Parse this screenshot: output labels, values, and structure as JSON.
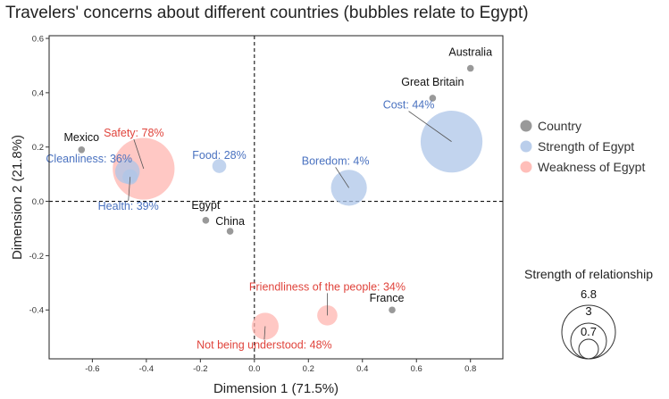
{
  "colors": {
    "country": "#999999",
    "strength": "#AEC6E8",
    "weakness": "#FFB3AD",
    "strength_text": "#4A72C0",
    "weakness_text": "#E0443C",
    "country_text": "#111111"
  },
  "chart_data": {
    "type": "scatter",
    "title": "Travelers' concerns about different countries (bubbles relate to Egypt)",
    "xlabel": "Dimension 1 (71.5%)",
    "ylabel": "Dimension 2 (21.8%)",
    "xlim": [
      -0.76,
      0.92
    ],
    "ylim": [
      -0.58,
      0.61
    ],
    "x_ticks": [
      "-0.6",
      "-0.4",
      "-0.2",
      "0.0",
      "0.2",
      "0.4",
      "0.6",
      "0.8"
    ],
    "y_ticks": [
      "-0.4",
      "-0.2",
      "0.0",
      "0.2",
      "0.4",
      "0.6"
    ],
    "grid": false,
    "reference_lines": "dashed lines at x = 0 and y = 0",
    "legend": {
      "placement": "right",
      "items": [
        "Country",
        "Strength of Egypt",
        "Weakness of Egypt"
      ]
    },
    "size_legend": {
      "title": "Strength of relationship",
      "values": [
        "6.8",
        "3",
        "0.7"
      ]
    },
    "series": [
      {
        "name": "Country",
        "points": [
          {
            "label": "Australia",
            "x": 0.8,
            "y": 0.49
          },
          {
            "label": "Great Britain",
            "x": 0.66,
            "y": 0.38
          },
          {
            "label": "Mexico",
            "x": -0.64,
            "y": 0.19
          },
          {
            "label": "Egypt",
            "x": -0.18,
            "y": -0.07
          },
          {
            "label": "China",
            "x": -0.09,
            "y": -0.11
          },
          {
            "label": "France",
            "x": 0.51,
            "y": -0.4
          }
        ]
      },
      {
        "name": "Strength of Egypt",
        "points": [
          {
            "label": "Cost: 44%",
            "x": 0.73,
            "y": 0.22,
            "size": 6.5
          },
          {
            "label": "Boredom: 4%",
            "x": 0.35,
            "y": 0.05,
            "size": 1.9
          },
          {
            "label": "Food: 28%",
            "x": -0.13,
            "y": 0.13,
            "size": 0.15
          },
          {
            "label": "Cleanliness: 36%",
            "x": -0.47,
            "y": 0.11,
            "size": 0.75
          },
          {
            "label": "Health: 39%",
            "x": -0.46,
            "y": 0.09,
            "size": 0.2
          }
        ]
      },
      {
        "name": "Weakness of Egypt",
        "points": [
          {
            "label": "Safety: 78%",
            "x": -0.41,
            "y": 0.12,
            "size": 6.5
          },
          {
            "label": "Friendliness of the people: 34%",
            "x": 0.27,
            "y": -0.42,
            "size": 0.45
          },
          {
            "label": "Not being understood: 48%",
            "x": 0.04,
            "y": -0.46,
            "size": 0.95
          }
        ]
      }
    ]
  }
}
